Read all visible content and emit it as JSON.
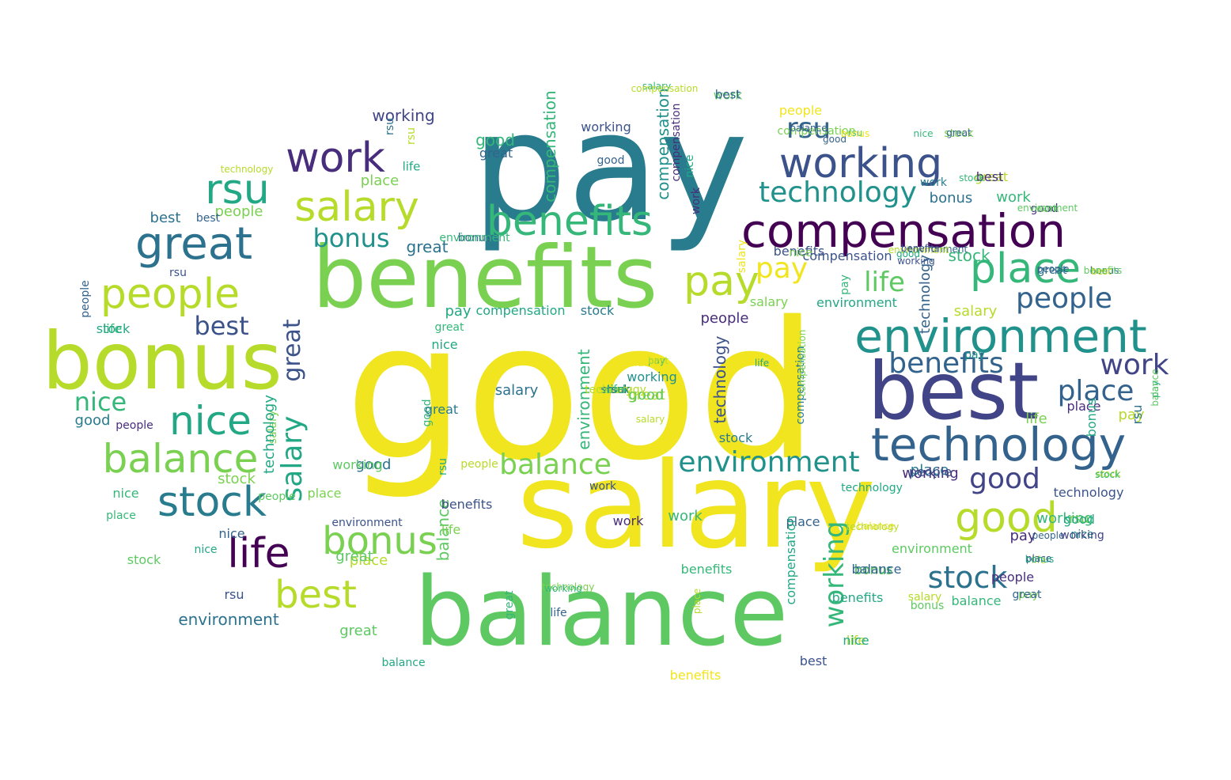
{
  "palette": {
    "yellow": "#f0e51e",
    "lime": "#b6db2a",
    "green": "#7ad151",
    "lightgreen": "#5ec962",
    "seagreen": "#35b779",
    "teal": "#22a884",
    "tealdark": "#1f988b",
    "cyan": "#21918c",
    "petrol": "#287c8e",
    "blue": "#2c728e",
    "steel": "#33638d",
    "indigo": "#3b528b",
    "violet": "#414487",
    "purple": "#472d7b",
    "dark": "#440154"
  },
  "words": [
    {
      "text": "good",
      "c": "yellow"
    },
    {
      "text": "pay",
      "c": "petrol"
    },
    {
      "text": "salary",
      "c": "yellow"
    },
    {
      "text": "benefits",
      "c": "green"
    },
    {
      "text": "balance",
      "c": "lightgreen"
    },
    {
      "text": "best",
      "c": "violet"
    },
    {
      "text": "bonus",
      "c": "lime"
    },
    {
      "text": "compensation",
      "c": "dark"
    },
    {
      "text": "environment",
      "c": "cyan"
    },
    {
      "text": "technology",
      "c": "steel"
    },
    {
      "text": "working",
      "c": "indigo"
    },
    {
      "text": "benefits",
      "c": "seagreen"
    },
    {
      "text": "salary",
      "c": "lime"
    },
    {
      "text": "work",
      "c": "purple"
    },
    {
      "text": "great",
      "c": "blue"
    },
    {
      "text": "rsu",
      "c": "teal"
    },
    {
      "text": "people",
      "c": "lime"
    },
    {
      "text": "nice",
      "c": "teal"
    },
    {
      "text": "balance",
      "c": "green"
    },
    {
      "text": "stock",
      "c": "petrol"
    },
    {
      "text": "life",
      "c": "dark"
    },
    {
      "text": "bonus",
      "c": "green"
    },
    {
      "text": "best",
      "c": "lime"
    },
    {
      "text": "place",
      "c": "seagreen"
    },
    {
      "text": "pay",
      "c": "lime"
    },
    {
      "text": "technology",
      "c": "cyan"
    },
    {
      "text": "environment",
      "c": "cyan"
    },
    {
      "text": "balance",
      "c": "green"
    },
    {
      "text": "good",
      "c": "lime"
    },
    {
      "text": "stock",
      "c": "blue"
    },
    {
      "text": "working",
      "c": "seagreen"
    },
    {
      "text": "benefits",
      "c": "steel"
    },
    {
      "text": "place",
      "c": "steel"
    },
    {
      "text": "people",
      "c": "steel"
    },
    {
      "text": "work",
      "c": "violet"
    },
    {
      "text": "good",
      "c": "violet"
    },
    {
      "text": "salary",
      "c": "teal"
    },
    {
      "text": "great",
      "c": "indigo"
    },
    {
      "text": "life",
      "c": "lightgreen"
    },
    {
      "text": "rsu",
      "c": "steel"
    },
    {
      "text": "pay",
      "c": "yellow"
    },
    {
      "text": "best",
      "c": "indigo"
    },
    {
      "text": "nice",
      "c": "seagreen"
    },
    {
      "text": "bonus",
      "c": "cyan"
    },
    {
      "text": "compensation",
      "c": "seagreen"
    },
    {
      "text": "compensation",
      "c": "cyan"
    },
    {
      "text": "compensation",
      "c": "petrol"
    },
    {
      "text": "working",
      "c": "violet"
    },
    {
      "text": "technology",
      "c": "indigo"
    },
    {
      "text": "stock",
      "c": "seagreen"
    },
    {
      "text": "balance",
      "c": "lightgreen"
    },
    {
      "text": "great",
      "c": "blue"
    },
    {
      "text": "good",
      "c": "seagreen"
    },
    {
      "text": "great",
      "c": "steel"
    },
    {
      "text": "rsu",
      "c": "lime"
    },
    {
      "text": "life",
      "c": "teal"
    },
    {
      "text": "best",
      "c": "blue"
    },
    {
      "text": "working",
      "c": "indigo"
    },
    {
      "text": "place",
      "c": "green"
    },
    {
      "text": "environment",
      "c": "seagreen"
    },
    {
      "text": "environment",
      "c": "blue"
    },
    {
      "text": "salary",
      "c": "blue"
    },
    {
      "text": "great",
      "c": "lime"
    },
    {
      "text": "nice",
      "c": "teal"
    },
    {
      "text": "good",
      "c": "blue"
    },
    {
      "text": "people",
      "c": "purple"
    },
    {
      "text": "working",
      "c": "cyan"
    },
    {
      "text": "work",
      "c": "lightgreen"
    },
    {
      "text": "bonus",
      "c": "blue"
    },
    {
      "text": "place",
      "c": "petrol"
    },
    {
      "text": "salary",
      "c": "green"
    },
    {
      "text": "life",
      "c": "green"
    },
    {
      "text": "great",
      "c": "lightgreen"
    },
    {
      "text": "stock",
      "c": "green"
    },
    {
      "text": "people",
      "c": "green"
    },
    {
      "text": "benefits",
      "c": "seagreen"
    },
    {
      "text": "technology",
      "c": "lime"
    },
    {
      "text": "rsu",
      "c": "indigo"
    },
    {
      "text": "work",
      "c": "seagreen"
    },
    {
      "text": "place",
      "c": "lime"
    },
    {
      "text": "pay",
      "c": "teal"
    },
    {
      "text": "nice",
      "c": "seagreen"
    },
    {
      "text": "best",
      "c": "steel"
    },
    {
      "text": "good",
      "c": "petrol"
    },
    {
      "text": "working",
      "c": "lightgreen"
    },
    {
      "text": "compensation",
      "c": "teal"
    },
    {
      "text": "bonus",
      "c": "steel"
    },
    {
      "text": "people",
      "c": "yellow"
    },
    {
      "text": "environment",
      "c": "lightgreen"
    },
    {
      "text": "life",
      "c": "seagreen"
    },
    {
      "text": "stock",
      "c": "teal"
    },
    {
      "text": "salary",
      "c": "green"
    },
    {
      "text": "pay",
      "c": "purple"
    },
    {
      "text": "benefits",
      "c": "yellow"
    },
    {
      "text": "nice",
      "c": "steel"
    },
    {
      "text": "work",
      "c": "seagreen"
    },
    {
      "text": "good",
      "c": "lightgreen"
    },
    {
      "text": "great",
      "c": "lightgreen"
    },
    {
      "text": "place",
      "c": "green"
    },
    {
      "text": "rsu",
      "c": "blue"
    },
    {
      "text": "compensation",
      "c": "purple"
    },
    {
      "text": "technology",
      "c": "teal"
    },
    {
      "text": "pay",
      "c": "lime"
    },
    {
      "text": "stock",
      "c": "lightgreen"
    },
    {
      "text": "nice",
      "c": "teal"
    },
    {
      "text": "balance",
      "c": "teal"
    },
    {
      "text": "environment",
      "c": "indigo"
    },
    {
      "text": "great",
      "c": "lime"
    },
    {
      "text": "people",
      "c": "lightgreen"
    },
    {
      "text": "bonus",
      "c": "petrol"
    },
    {
      "text": "technology",
      "c": "indigo"
    },
    {
      "text": "work",
      "c": "purple"
    },
    {
      "text": "nice",
      "c": "cyan"
    },
    {
      "text": "life",
      "c": "lime"
    },
    {
      "text": "place",
      "c": "steel"
    },
    {
      "text": "benefits",
      "c": "indigo"
    },
    {
      "text": "benefits",
      "c": "indigo"
    },
    {
      "text": "compensation",
      "c": "green"
    },
    {
      "text": "environment",
      "c": "teal"
    },
    {
      "text": "stock",
      "c": "petrol"
    },
    {
      "text": "working",
      "c": "seagreen"
    },
    {
      "text": "rsu",
      "c": "indigo"
    },
    {
      "text": "best",
      "c": "indigo"
    },
    {
      "text": "people",
      "c": "steel"
    },
    {
      "text": "good",
      "c": "steel"
    },
    {
      "text": "balance",
      "c": "yellow"
    },
    {
      "text": "salary",
      "c": "lime"
    },
    {
      "text": "bonus",
      "c": "lightgreen"
    },
    {
      "text": "work",
      "c": "petrol"
    },
    {
      "text": "life",
      "c": "green"
    },
    {
      "text": "great",
      "c": "seagreen"
    },
    {
      "text": "pay",
      "c": "seagreen"
    },
    {
      "text": "place",
      "c": "purple"
    },
    {
      "text": "environment",
      "c": "seagreen"
    },
    {
      "text": "people",
      "c": "purple"
    },
    {
      "text": "nice",
      "c": "teal"
    },
    {
      "text": "good",
      "c": "seagreen"
    },
    {
      "text": "technology",
      "c": "teal"
    },
    {
      "text": "compensation",
      "c": "indigo"
    },
    {
      "text": "stock",
      "c": "petrol"
    },
    {
      "text": "salary",
      "c": "yellow"
    },
    {
      "text": "balance",
      "c": "seagreen"
    },
    {
      "text": "bonus",
      "c": "lightgreen"
    },
    {
      "text": "place",
      "c": "seagreen"
    },
    {
      "text": "rsu",
      "c": "teal"
    },
    {
      "text": "benefits",
      "c": "teal"
    },
    {
      "text": "people",
      "c": "lime"
    },
    {
      "text": "pay",
      "c": "cyan"
    },
    {
      "text": "life",
      "c": "steel"
    },
    {
      "text": "work",
      "c": "purple"
    },
    {
      "text": "good",
      "c": "steel"
    },
    {
      "text": "balance",
      "c": "steel"
    },
    {
      "text": "best",
      "c": "steel"
    },
    {
      "text": "technology",
      "c": "steel"
    },
    {
      "text": "working",
      "c": "indigo"
    },
    {
      "text": "great",
      "c": "petrol"
    },
    {
      "text": "nice",
      "c": "teal"
    },
    {
      "text": "salary",
      "c": "lime"
    },
    {
      "text": "environment",
      "c": "steel"
    },
    {
      "text": "stock",
      "c": "lime"
    },
    {
      "text": "pay",
      "c": "teal"
    },
    {
      "text": "compensation",
      "c": "teal"
    },
    {
      "text": "rsu",
      "c": "blue"
    },
    {
      "text": "bonus",
      "c": "steel"
    },
    {
      "text": "great",
      "c": "blue"
    },
    {
      "text": "people",
      "c": "purple"
    },
    {
      "text": "life",
      "c": "lime"
    },
    {
      "text": "place",
      "c": "lime"
    },
    {
      "text": "technology",
      "c": "green"
    },
    {
      "text": "environment",
      "c": "lime"
    },
    {
      "text": "best",
      "c": "purple"
    },
    {
      "text": "stock",
      "c": "green"
    },
    {
      "text": "working",
      "c": "purple"
    },
    {
      "text": "nice",
      "c": "green"
    },
    {
      "text": "salary",
      "c": "seagreen"
    },
    {
      "text": "pay",
      "c": "seagreen"
    },
    {
      "text": "good",
      "c": "purple"
    },
    {
      "text": "bonus",
      "c": "yellow"
    },
    {
      "text": "balance",
      "c": "yellow"
    },
    {
      "text": "great",
      "c": "seagreen"
    },
    {
      "text": "people",
      "c": "steel"
    },
    {
      "text": "rsu",
      "c": "green"
    },
    {
      "text": "working",
      "c": "seagreen"
    },
    {
      "text": "work",
      "c": "indigo"
    },
    {
      "text": "compensation",
      "c": "green"
    },
    {
      "text": "technology",
      "c": "lime"
    },
    {
      "text": "life",
      "c": "teal"
    },
    {
      "text": "bonus",
      "c": "teal"
    },
    {
      "text": "benefits",
      "c": "indigo"
    },
    {
      "text": "good",
      "c": "teal"
    },
    {
      "text": "nice",
      "c": "seagreen"
    },
    {
      "text": "best",
      "c": "lime"
    },
    {
      "text": "stock",
      "c": "seagreen"
    },
    {
      "text": "place",
      "c": "indigo"
    },
    {
      "text": "pay",
      "c": "green"
    },
    {
      "text": "salary",
      "c": "lime"
    },
    {
      "text": "balance",
      "c": "steel"
    },
    {
      "text": "environment",
      "c": "lightgreen"
    },
    {
      "text": "great",
      "c": "steel"
    },
    {
      "text": "people",
      "c": "indigo"
    },
    {
      "text": "compensation",
      "c": "lime"
    },
    {
      "text": "rsu",
      "c": "lightgreen"
    },
    {
      "text": "people",
      "c": "steel"
    },
    {
      "text": "benefits",
      "c": "lightgreen"
    },
    {
      "text": "work",
      "c": "lightgreen"
    },
    {
      "text": "best",
      "c": "lime"
    },
    {
      "text": "stock",
      "c": "seagreen"
    },
    {
      "text": "balance",
      "c": "lightgreen"
    },
    {
      "text": "bonus",
      "c": "teal"
    },
    {
      "text": "working",
      "c": "violet"
    },
    {
      "text": "good",
      "c": "teal"
    },
    {
      "text": "great",
      "c": "steel"
    },
    {
      "text": "technology",
      "c": "lime"
    },
    {
      "text": "stock",
      "c": "steel"
    },
    {
      "text": "work",
      "c": "seagreen"
    },
    {
      "text": "salary",
      "c": "lime"
    },
    {
      "text": "rsu",
      "c": "steel"
    },
    {
      "text": "life",
      "c": "seagreen"
    }
  ]
}
